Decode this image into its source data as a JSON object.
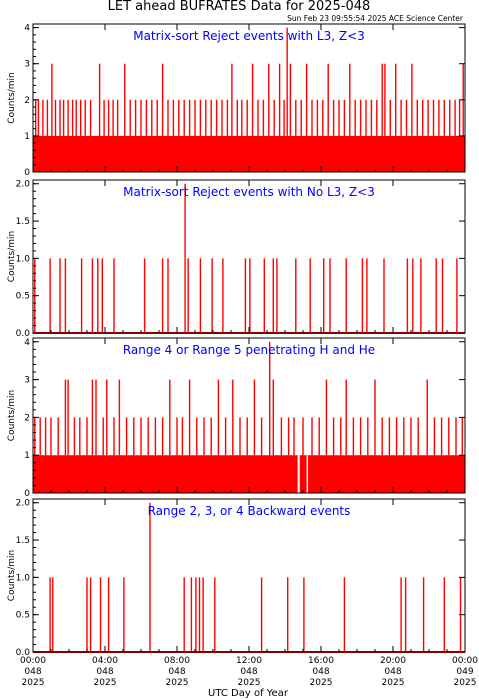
{
  "header": {
    "title": "LET ahead BUFRATES Data for 2025-048",
    "stamp": "Sun Feb 23 09:55:54 2025 ACE Science Center"
  },
  "x_axis": {
    "label": "UTC Day of Year",
    "ticks": [
      {
        "hour": 0,
        "time": "00:00",
        "doy": "048",
        "year": "2025"
      },
      {
        "hour": 4,
        "time": "04:00",
        "doy": "048",
        "year": "2025"
      },
      {
        "hour": 8,
        "time": "08:00",
        "doy": "048",
        "year": "2025"
      },
      {
        "hour": 12,
        "time": "12:00",
        "doy": "048",
        "year": "2025"
      },
      {
        "hour": 16,
        "time": "16:00",
        "doy": "048",
        "year": "2025"
      },
      {
        "hour": 20,
        "time": "20:00",
        "doy": "048",
        "year": "2025"
      },
      {
        "hour": 24,
        "time": "00:00",
        "doy": "049",
        "year": "2025"
      }
    ]
  },
  "colors": {
    "data": "#ff0000",
    "title": "#0000ff",
    "axes": "#000000"
  },
  "chart_data": [
    {
      "type": "line",
      "title": "Matrix-sort Reject events with L3, Z<3",
      "ylabel": "Counts/min",
      "xlim": [
        0,
        24
      ],
      "ylim": [
        0,
        4.1
      ],
      "yticks": [
        "0",
        "1",
        "2",
        "3",
        "4"
      ],
      "baseline": 1,
      "gaps": [],
      "spikes": [
        {
          "x": 0.15,
          "y": 2
        },
        {
          "x": 0.3,
          "y": 2
        },
        {
          "x": 0.55,
          "y": 2
        },
        {
          "x": 0.8,
          "y": 2
        },
        {
          "x": 1.05,
          "y": 3
        },
        {
          "x": 1.25,
          "y": 2
        },
        {
          "x": 1.5,
          "y": 2
        },
        {
          "x": 1.7,
          "y": 2
        },
        {
          "x": 1.95,
          "y": 2
        },
        {
          "x": 2.2,
          "y": 2
        },
        {
          "x": 2.4,
          "y": 2
        },
        {
          "x": 2.65,
          "y": 2
        },
        {
          "x": 2.9,
          "y": 2
        },
        {
          "x": 3.2,
          "y": 2
        },
        {
          "x": 3.7,
          "y": 3
        },
        {
          "x": 3.95,
          "y": 2
        },
        {
          "x": 4.2,
          "y": 2
        },
        {
          "x": 4.45,
          "y": 2
        },
        {
          "x": 4.7,
          "y": 2
        },
        {
          "x": 5.1,
          "y": 3
        },
        {
          "x": 5.4,
          "y": 2
        },
        {
          "x": 5.7,
          "y": 2
        },
        {
          "x": 6.0,
          "y": 2
        },
        {
          "x": 6.3,
          "y": 2
        },
        {
          "x": 6.6,
          "y": 2
        },
        {
          "x": 6.9,
          "y": 2
        },
        {
          "x": 7.2,
          "y": 3
        },
        {
          "x": 7.5,
          "y": 2
        },
        {
          "x": 7.8,
          "y": 2
        },
        {
          "x": 8.1,
          "y": 2
        },
        {
          "x": 8.4,
          "y": 2
        },
        {
          "x": 8.7,
          "y": 2
        },
        {
          "x": 9.0,
          "y": 2
        },
        {
          "x": 9.3,
          "y": 2
        },
        {
          "x": 9.6,
          "y": 2
        },
        {
          "x": 9.9,
          "y": 2
        },
        {
          "x": 10.2,
          "y": 2
        },
        {
          "x": 10.5,
          "y": 2
        },
        {
          "x": 10.8,
          "y": 2
        },
        {
          "x": 11.05,
          "y": 3
        },
        {
          "x": 11.35,
          "y": 2
        },
        {
          "x": 11.6,
          "y": 2
        },
        {
          "x": 11.9,
          "y": 2
        },
        {
          "x": 12.2,
          "y": 3
        },
        {
          "x": 12.5,
          "y": 2
        },
        {
          "x": 12.8,
          "y": 2
        },
        {
          "x": 13.1,
          "y": 3
        },
        {
          "x": 13.4,
          "y": 2
        },
        {
          "x": 13.7,
          "y": 3
        },
        {
          "x": 13.95,
          "y": 2
        },
        {
          "x": 14.12,
          "y": 4
        },
        {
          "x": 14.3,
          "y": 3
        },
        {
          "x": 14.6,
          "y": 2
        },
        {
          "x": 14.9,
          "y": 2
        },
        {
          "x": 15.2,
          "y": 3
        },
        {
          "x": 15.5,
          "y": 2
        },
        {
          "x": 15.8,
          "y": 2
        },
        {
          "x": 16.1,
          "y": 2
        },
        {
          "x": 16.4,
          "y": 3
        },
        {
          "x": 16.7,
          "y": 2
        },
        {
          "x": 17.0,
          "y": 2
        },
        {
          "x": 17.3,
          "y": 2
        },
        {
          "x": 17.6,
          "y": 3
        },
        {
          "x": 17.9,
          "y": 2
        },
        {
          "x": 18.2,
          "y": 2
        },
        {
          "x": 18.5,
          "y": 2
        },
        {
          "x": 18.8,
          "y": 2
        },
        {
          "x": 19.1,
          "y": 2
        },
        {
          "x": 19.4,
          "y": 3
        },
        {
          "x": 19.55,
          "y": 3
        },
        {
          "x": 19.85,
          "y": 2
        },
        {
          "x": 20.15,
          "y": 3
        },
        {
          "x": 20.45,
          "y": 2
        },
        {
          "x": 20.75,
          "y": 2
        },
        {
          "x": 21.05,
          "y": 3
        },
        {
          "x": 21.35,
          "y": 2
        },
        {
          "x": 21.65,
          "y": 2
        },
        {
          "x": 21.95,
          "y": 2
        },
        {
          "x": 22.25,
          "y": 2
        },
        {
          "x": 22.55,
          "y": 2
        },
        {
          "x": 22.85,
          "y": 2
        },
        {
          "x": 23.15,
          "y": 2
        },
        {
          "x": 23.45,
          "y": 2
        },
        {
          "x": 23.7,
          "y": 2
        },
        {
          "x": 23.9,
          "y": 3
        }
      ]
    },
    {
      "type": "line",
      "title": "Matrix-sort Reject events with No L3, Z<3",
      "ylabel": "Counts/min",
      "xlim": [
        0,
        24
      ],
      "ylim": [
        0,
        2.05
      ],
      "yticks": [
        "0.0",
        "0.5",
        "1.0",
        "1.5",
        "2.0"
      ],
      "baseline": 0,
      "gaps": [],
      "spikes": [
        {
          "x": 0.1,
          "y": 1
        },
        {
          "x": 0.95,
          "y": 1
        },
        {
          "x": 1.5,
          "y": 1
        },
        {
          "x": 1.8,
          "y": 1
        },
        {
          "x": 2.7,
          "y": 1
        },
        {
          "x": 3.3,
          "y": 1
        },
        {
          "x": 3.6,
          "y": 1
        },
        {
          "x": 3.85,
          "y": 1
        },
        {
          "x": 4.5,
          "y": 1
        },
        {
          "x": 6.2,
          "y": 1
        },
        {
          "x": 7.2,
          "y": 1
        },
        {
          "x": 7.5,
          "y": 1
        },
        {
          "x": 8.45,
          "y": 2
        },
        {
          "x": 8.62,
          "y": 1
        },
        {
          "x": 9.3,
          "y": 1
        },
        {
          "x": 9.95,
          "y": 1
        },
        {
          "x": 10.55,
          "y": 1
        },
        {
          "x": 11.8,
          "y": 1
        },
        {
          "x": 12.05,
          "y": 1
        },
        {
          "x": 12.85,
          "y": 1
        },
        {
          "x": 13.35,
          "y": 1
        },
        {
          "x": 13.55,
          "y": 1
        },
        {
          "x": 14.6,
          "y": 1
        },
        {
          "x": 15.4,
          "y": 1
        },
        {
          "x": 16.15,
          "y": 1
        },
        {
          "x": 16.5,
          "y": 1
        },
        {
          "x": 17.4,
          "y": 1
        },
        {
          "x": 18.3,
          "y": 1
        },
        {
          "x": 18.55,
          "y": 1
        },
        {
          "x": 19.5,
          "y": 1
        },
        {
          "x": 20.8,
          "y": 1
        },
        {
          "x": 21.1,
          "y": 1
        },
        {
          "x": 21.55,
          "y": 1
        },
        {
          "x": 22.4,
          "y": 1
        },
        {
          "x": 22.75,
          "y": 1
        },
        {
          "x": 23.55,
          "y": 1
        }
      ]
    },
    {
      "type": "line",
      "title": "Range 4 or Range 5 penetrating H and He",
      "ylabel": "Counts/min",
      "xlim": [
        0,
        24
      ],
      "ylim": [
        0,
        4.1
      ],
      "yticks": [
        "0",
        "1",
        "2",
        "3",
        "4"
      ],
      "baseline": 1,
      "gaps": [
        {
          "x": 14.7,
          "width": 0.12
        },
        {
          "x": 15.2,
          "width": 0.08
        }
      ],
      "spikes": [
        {
          "x": 0.1,
          "y": 2
        },
        {
          "x": 0.4,
          "y": 2
        },
        {
          "x": 0.7,
          "y": 2
        },
        {
          "x": 1.0,
          "y": 2
        },
        {
          "x": 1.4,
          "y": 2
        },
        {
          "x": 1.8,
          "y": 3
        },
        {
          "x": 1.95,
          "y": 3
        },
        {
          "x": 2.3,
          "y": 2
        },
        {
          "x": 2.6,
          "y": 2
        },
        {
          "x": 3.0,
          "y": 2
        },
        {
          "x": 3.3,
          "y": 3
        },
        {
          "x": 3.5,
          "y": 3
        },
        {
          "x": 3.9,
          "y": 2
        },
        {
          "x": 4.1,
          "y": 3
        },
        {
          "x": 4.5,
          "y": 2
        },
        {
          "x": 4.8,
          "y": 3
        },
        {
          "x": 5.2,
          "y": 2
        },
        {
          "x": 5.6,
          "y": 2
        },
        {
          "x": 6.0,
          "y": 2
        },
        {
          "x": 6.4,
          "y": 2
        },
        {
          "x": 6.8,
          "y": 2
        },
        {
          "x": 7.2,
          "y": 2
        },
        {
          "x": 7.6,
          "y": 3
        },
        {
          "x": 8.0,
          "y": 2
        },
        {
          "x": 8.3,
          "y": 2
        },
        {
          "x": 8.7,
          "y": 3
        },
        {
          "x": 9.1,
          "y": 2
        },
        {
          "x": 9.5,
          "y": 2
        },
        {
          "x": 9.9,
          "y": 2
        },
        {
          "x": 10.3,
          "y": 3
        },
        {
          "x": 10.7,
          "y": 2
        },
        {
          "x": 11.1,
          "y": 3
        },
        {
          "x": 11.5,
          "y": 2
        },
        {
          "x": 11.9,
          "y": 2
        },
        {
          "x": 12.3,
          "y": 3
        },
        {
          "x": 12.7,
          "y": 2
        },
        {
          "x": 13.15,
          "y": 4
        },
        {
          "x": 13.35,
          "y": 3
        },
        {
          "x": 13.8,
          "y": 2
        },
        {
          "x": 14.2,
          "y": 2
        },
        {
          "x": 14.5,
          "y": 2
        },
        {
          "x": 15.0,
          "y": 2
        },
        {
          "x": 15.5,
          "y": 2
        },
        {
          "x": 15.9,
          "y": 2
        },
        {
          "x": 16.3,
          "y": 3
        },
        {
          "x": 16.7,
          "y": 2
        },
        {
          "x": 17.1,
          "y": 2
        },
        {
          "x": 17.4,
          "y": 3
        },
        {
          "x": 17.8,
          "y": 2
        },
        {
          "x": 18.2,
          "y": 2
        },
        {
          "x": 18.6,
          "y": 2
        },
        {
          "x": 19.0,
          "y": 3
        },
        {
          "x": 19.4,
          "y": 2
        },
        {
          "x": 19.8,
          "y": 2
        },
        {
          "x": 20.2,
          "y": 2
        },
        {
          "x": 20.6,
          "y": 2
        },
        {
          "x": 21.0,
          "y": 2
        },
        {
          "x": 21.4,
          "y": 2
        },
        {
          "x": 21.9,
          "y": 3
        },
        {
          "x": 22.3,
          "y": 2
        },
        {
          "x": 22.7,
          "y": 2
        },
        {
          "x": 23.1,
          "y": 2
        },
        {
          "x": 23.5,
          "y": 2
        },
        {
          "x": 23.85,
          "y": 2
        }
      ]
    },
    {
      "type": "line",
      "title": "Range 2, 3, or 4 Backward events",
      "ylabel": "Counts/min",
      "xlim": [
        0,
        24
      ],
      "ylim": [
        0,
        2.05
      ],
      "yticks": [
        "0.0",
        "0.5",
        "1.0",
        "1.5",
        "2.0"
      ],
      "baseline": 0,
      "gaps": [],
      "spikes": [
        {
          "x": 0.95,
          "y": 1
        },
        {
          "x": 1.1,
          "y": 1
        },
        {
          "x": 3.0,
          "y": 1
        },
        {
          "x": 3.2,
          "y": 1
        },
        {
          "x": 3.75,
          "y": 1
        },
        {
          "x": 4.2,
          "y": 1
        },
        {
          "x": 5.05,
          "y": 1
        },
        {
          "x": 6.5,
          "y": 2
        },
        {
          "x": 8.4,
          "y": 1
        },
        {
          "x": 8.8,
          "y": 1
        },
        {
          "x": 9.05,
          "y": 1
        },
        {
          "x": 9.25,
          "y": 1
        },
        {
          "x": 9.45,
          "y": 1
        },
        {
          "x": 10.1,
          "y": 1
        },
        {
          "x": 12.7,
          "y": 1
        },
        {
          "x": 14.15,
          "y": 1
        },
        {
          "x": 15.05,
          "y": 1
        },
        {
          "x": 17.3,
          "y": 1
        },
        {
          "x": 20.45,
          "y": 1
        },
        {
          "x": 20.7,
          "y": 1
        },
        {
          "x": 21.7,
          "y": 1
        },
        {
          "x": 22.85,
          "y": 1
        },
        {
          "x": 23.75,
          "y": 1
        }
      ]
    }
  ]
}
